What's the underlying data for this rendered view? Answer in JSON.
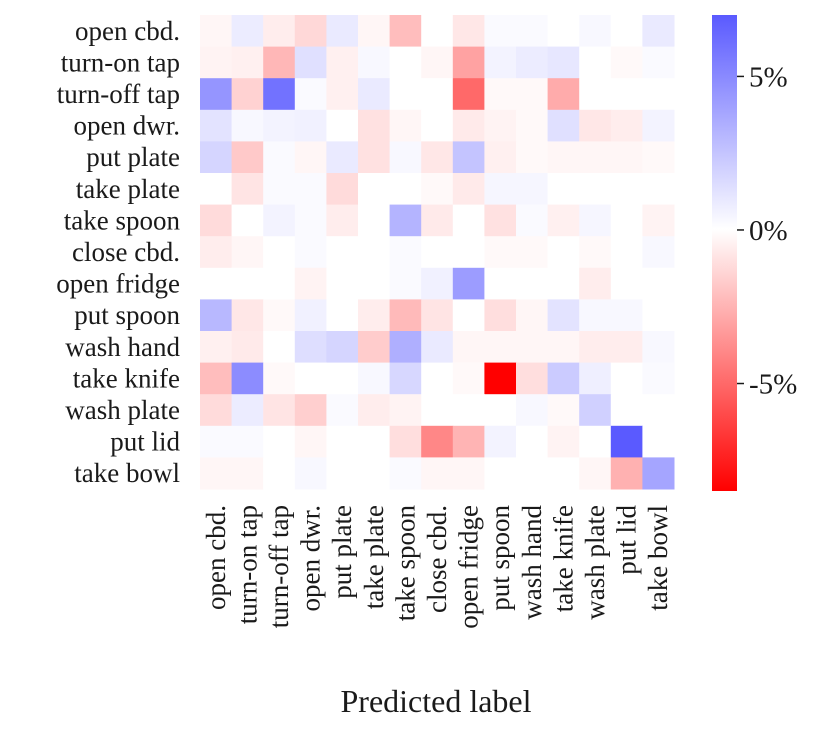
{
  "chart_data": {
    "type": "heatmap",
    "xlabel": "Predicted label",
    "ylabel": "",
    "x_categories": [
      "open cbd.",
      "turn-on tap",
      "turn-off tap",
      "open dwr.",
      "put plate",
      "take plate",
      "take spoon",
      "close cbd.",
      "open fridge",
      "put spoon",
      "wash hand",
      "take knife",
      "wash plate",
      "put lid",
      "take bowl"
    ],
    "y_categories": [
      "open cbd.",
      "turn-on tap",
      "turn-off tap",
      "open dwr.",
      "put plate",
      "take plate",
      "take spoon",
      "close cbd.",
      "open fridge",
      "put spoon",
      "wash hand",
      "take knife",
      "wash plate",
      "put lid",
      "take bowl"
    ],
    "unit": "%",
    "values": [
      [
        -0.3,
        0.8,
        -0.6,
        -1.3,
        0.9,
        -0.3,
        -2.2,
        0.0,
        -0.8,
        0.2,
        0.2,
        0.0,
        0.3,
        0.0,
        0.9
      ],
      [
        -0.4,
        -0.5,
        -2.4,
        1.3,
        -0.5,
        0.3,
        0.0,
        -0.3,
        -3.1,
        0.5,
        0.8,
        1.0,
        0.0,
        -0.2,
        0.2
      ],
      [
        4.5,
        -1.5,
        6.0,
        0.2,
        -0.5,
        0.9,
        0.0,
        0.0,
        -5.0,
        -0.2,
        -0.2,
        -2.8,
        0.0,
        0.0,
        0.0
      ],
      [
        1.2,
        0.3,
        0.5,
        0.6,
        0.0,
        -1.0,
        -0.3,
        0.0,
        -0.7,
        -0.4,
        -0.2,
        1.3,
        -0.8,
        -0.6,
        0.5
      ],
      [
        1.8,
        -1.8,
        0.2,
        -0.3,
        0.9,
        -1.0,
        0.3,
        -0.8,
        2.5,
        -0.5,
        -0.2,
        -0.3,
        -0.3,
        -0.3,
        -0.2
      ],
      [
        0.0,
        -0.9,
        0.2,
        0.2,
        -1.2,
        0.0,
        0.0,
        -0.2,
        -0.7,
        0.4,
        0.4,
        0.0,
        0.0,
        0.0,
        0.0
      ],
      [
        -1.2,
        0.0,
        0.5,
        0.2,
        -0.6,
        0.0,
        3.2,
        -0.7,
        0.0,
        -1.0,
        0.2,
        -0.5,
        0.4,
        0.0,
        -0.4
      ],
      [
        -0.6,
        -0.3,
        0.0,
        0.2,
        0.0,
        0.0,
        0.2,
        0.0,
        0.0,
        -0.2,
        -0.2,
        0.0,
        -0.2,
        0.0,
        0.3
      ],
      [
        0.0,
        0.0,
        0.0,
        -0.4,
        0.0,
        0.0,
        0.2,
        0.6,
        4.2,
        0.0,
        0.0,
        0.0,
        -0.6,
        0.0,
        0.0
      ],
      [
        3.0,
        -0.8,
        -0.2,
        0.6,
        0.0,
        -0.6,
        -2.3,
        -0.9,
        0.0,
        -1.1,
        -0.3,
        1.2,
        0.3,
        0.3,
        0.0
      ],
      [
        -0.5,
        -0.7,
        0.0,
        1.4,
        1.8,
        -1.7,
        3.4,
        0.9,
        -0.3,
        -0.3,
        -0.3,
        -0.3,
        -0.6,
        -0.6,
        0.3
      ],
      [
        -2.2,
        4.9,
        -0.2,
        0.0,
        0.0,
        0.3,
        1.7,
        0.0,
        -0.2,
        -8.5,
        -1.1,
        2.2,
        0.7,
        0.0,
        0.2
      ],
      [
        -1.2,
        0.8,
        -0.9,
        -1.6,
        0.2,
        -0.6,
        -0.4,
        0.0,
        0.0,
        0.0,
        0.3,
        -0.2,
        2.0,
        0.0,
        0.0
      ],
      [
        0.2,
        0.2,
        0.0,
        -0.3,
        0.0,
        0.0,
        -1.1,
        -4.0,
        -2.5,
        0.5,
        0.0,
        -0.4,
        0.0,
        7.0,
        0.0
      ],
      [
        -0.3,
        -0.3,
        0.0,
        0.3,
        0.0,
        0.0,
        0.2,
        -0.3,
        -0.3,
        0.0,
        0.0,
        0.0,
        -0.3,
        -2.6,
        3.8
      ]
    ],
    "colorbar": {
      "range": [
        -8.5,
        7.0
      ],
      "ticks": [
        5,
        0,
        -5
      ],
      "tick_labels": [
        "5%",
        "0%",
        "-5%"
      ],
      "colormap": "bwr",
      "colors": {
        "positive": "#5a5aff",
        "zero": "#ffffff",
        "negative": "#ff0000"
      }
    }
  }
}
